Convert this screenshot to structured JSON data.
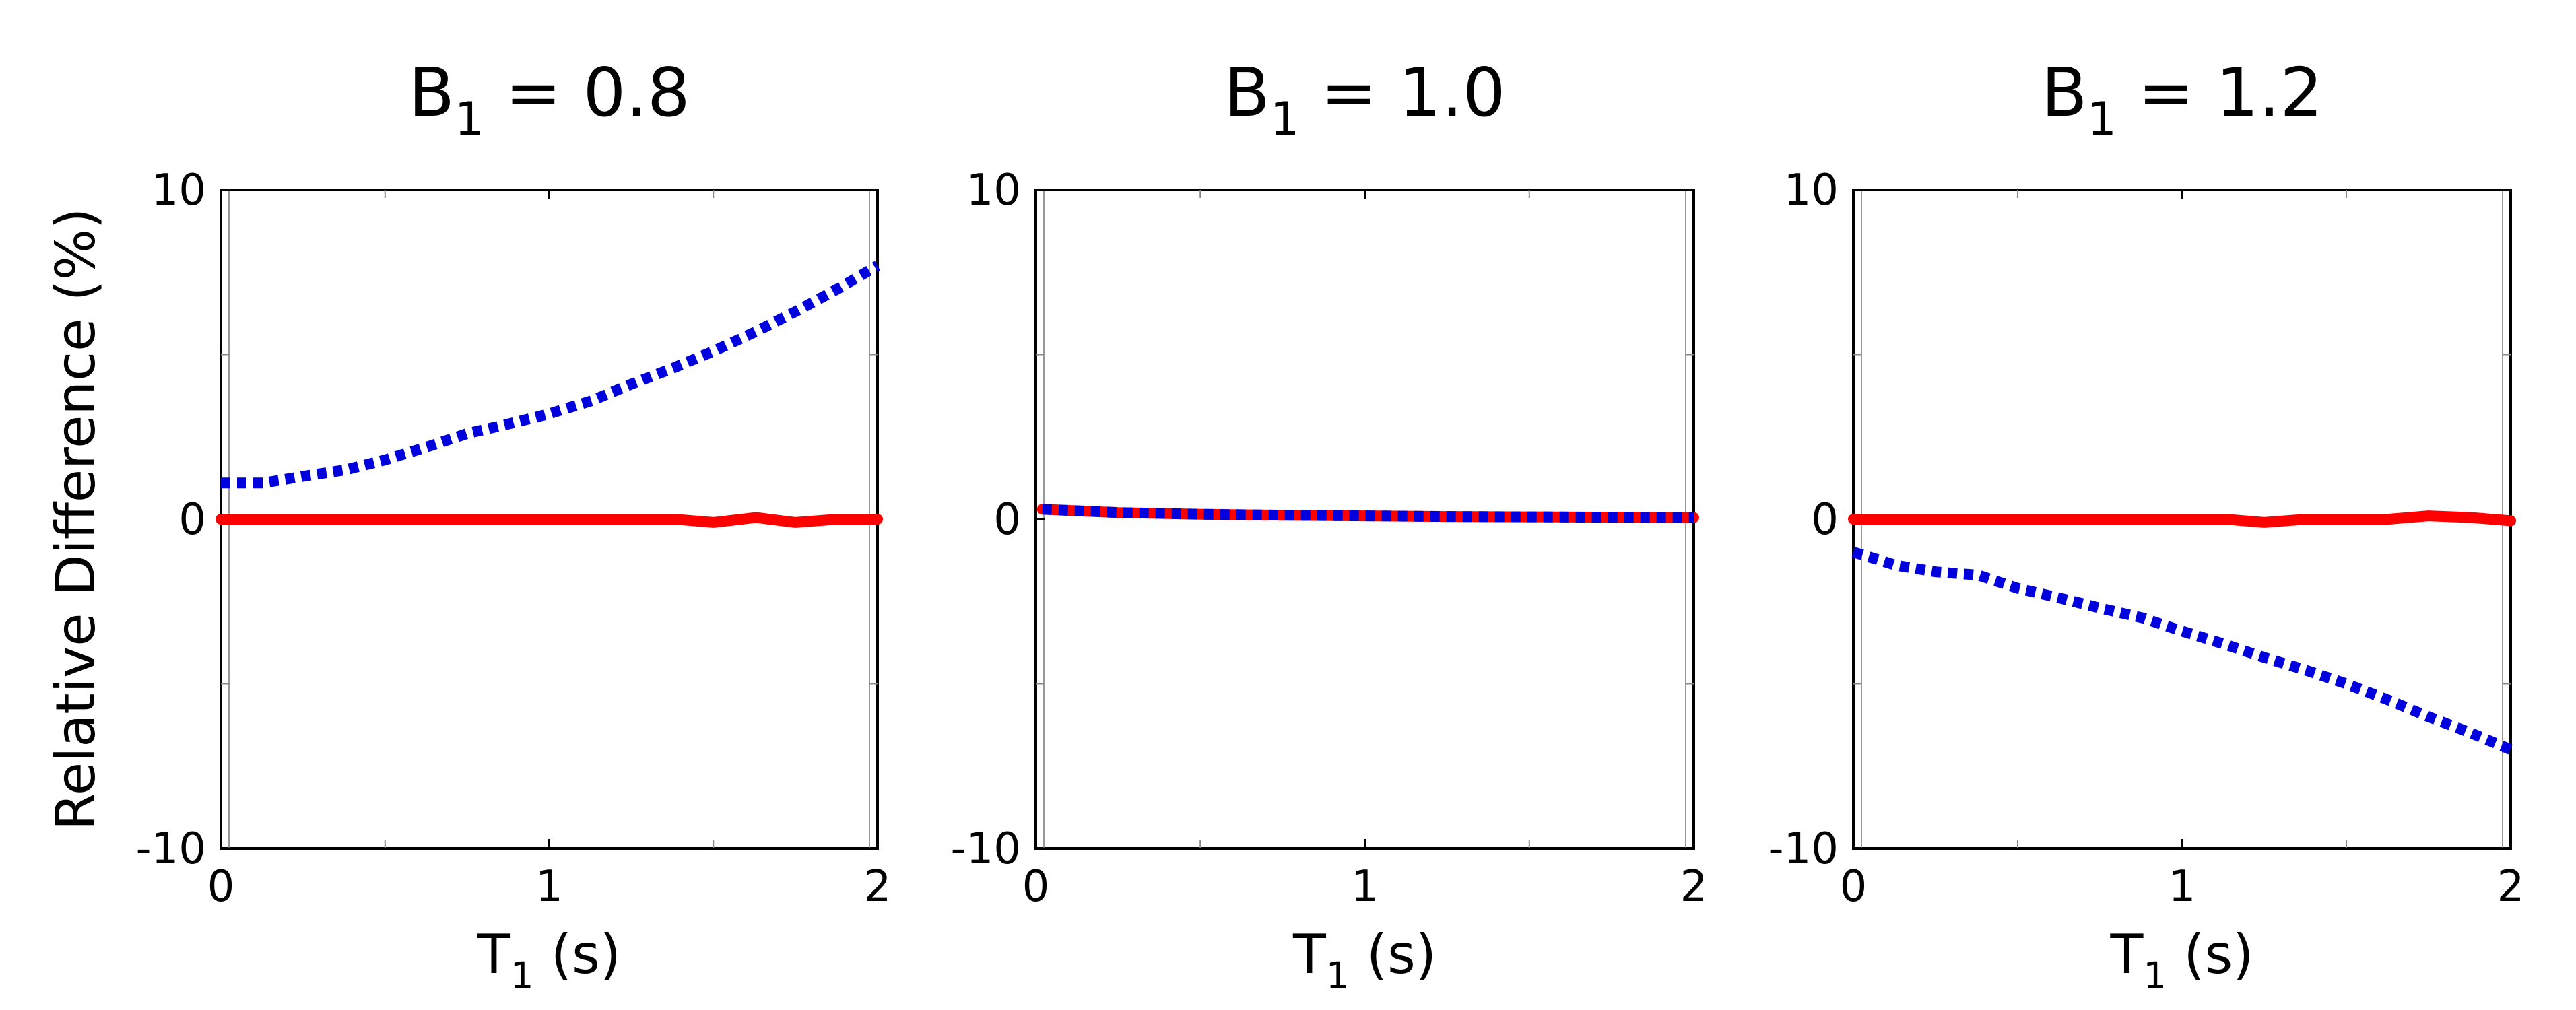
{
  "chart_data": [
    {
      "type": "line",
      "title": {
        "main": "B",
        "sub": "1",
        "rest": " = 0.8"
      },
      "xlabel": {
        "main": "T",
        "sub": "1",
        "rest": " (s)"
      },
      "ylabel": "Relative Difference (%)",
      "xlim": [
        0,
        2
      ],
      "ylim": [
        -10,
        10
      ],
      "xticks": [
        "0",
        "1",
        "2"
      ],
      "yticks": [
        "10",
        "0",
        "-10"
      ],
      "series": [
        {
          "color": "#0000dd",
          "style": "dotted",
          "x": [
            0,
            0.13,
            0.25,
            0.38,
            0.5,
            0.63,
            0.75,
            0.88,
            1.0,
            1.13,
            1.25,
            1.38,
            1.5,
            1.63,
            1.75,
            1.88,
            2.0
          ],
          "y": [
            1.1,
            1.1,
            1.3,
            1.5,
            1.8,
            2.2,
            2.6,
            2.9,
            3.2,
            3.6,
            4.1,
            4.6,
            5.1,
            5.7,
            6.3,
            7.0,
            7.7
          ]
        },
        {
          "color": "#ff0000",
          "style": "solid",
          "x": [
            0,
            0.25,
            0.5,
            0.75,
            1.0,
            1.25,
            1.38,
            1.5,
            1.63,
            1.75,
            1.88,
            2.0
          ],
          "y": [
            0,
            0,
            0,
            0,
            0,
            0,
            0,
            -0.1,
            0.05,
            -0.1,
            0,
            0
          ]
        }
      ]
    },
    {
      "type": "line",
      "title": {
        "main": "B",
        "sub": "1",
        "rest": " = 1.0"
      },
      "xlabel": {
        "main": "T",
        "sub": "1",
        "rest": " (s)"
      },
      "xlim": [
        0,
        2
      ],
      "ylim": [
        -10,
        10
      ],
      "xticks": [
        "0",
        "1",
        "2"
      ],
      "yticks": [
        "10",
        "0",
        "-10"
      ],
      "series": [
        {
          "color": "#ff0000",
          "style": "solid",
          "x": [
            0.02,
            0.25,
            0.5,
            0.75,
            1.0,
            1.25,
            1.5,
            1.75,
            2.0
          ],
          "y": [
            0.3,
            0.2,
            0.15,
            0.12,
            0.1,
            0.08,
            0.07,
            0.06,
            0.05
          ]
        },
        {
          "color": "#0000dd",
          "style": "dotted",
          "x": [
            0.02,
            0.25,
            0.5,
            0.75,
            1.0,
            1.25,
            1.5,
            1.75,
            2.0
          ],
          "y": [
            0.3,
            0.2,
            0.15,
            0.12,
            0.1,
            0.08,
            0.07,
            0.06,
            0.05
          ]
        }
      ]
    },
    {
      "type": "line",
      "title": {
        "main": "B",
        "sub": "1",
        "rest": " = 1.2"
      },
      "xlabel": {
        "main": "T",
        "sub": "1",
        "rest": " (s)"
      },
      "xlim": [
        0,
        2
      ],
      "ylim": [
        -10,
        10
      ],
      "xticks": [
        "0",
        "1",
        "2"
      ],
      "yticks": [
        "10",
        "0",
        "-10"
      ],
      "series": [
        {
          "color": "#0000dd",
          "style": "dotted",
          "x": [
            0,
            0.13,
            0.25,
            0.38,
            0.5,
            0.63,
            0.75,
            0.88,
            1.0,
            1.13,
            1.25,
            1.38,
            1.5,
            1.63,
            1.75,
            1.88,
            2.0
          ],
          "y": [
            -1.0,
            -1.4,
            -1.6,
            -1.7,
            -2.1,
            -2.4,
            -2.7,
            -3.0,
            -3.4,
            -3.8,
            -4.2,
            -4.6,
            -5.0,
            -5.5,
            -6.0,
            -6.5,
            -7.0
          ]
        },
        {
          "color": "#ff0000",
          "style": "solid",
          "x": [
            0,
            0.25,
            0.5,
            0.75,
            1.0,
            1.13,
            1.25,
            1.38,
            1.5,
            1.63,
            1.75,
            1.88,
            2.0
          ],
          "y": [
            0,
            0,
            0,
            0,
            0,
            0,
            -0.1,
            0,
            0,
            0,
            0.1,
            0.05,
            -0.05
          ]
        }
      ]
    }
  ]
}
